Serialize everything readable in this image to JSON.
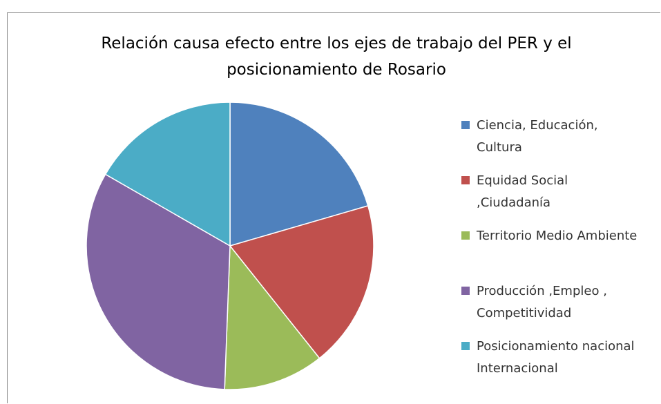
{
  "chart_data": {
    "type": "pie",
    "title": "Relación causa efecto entre los ejes de trabajo del PER y el posicionamiento  de Rosario",
    "categories": [
      "Ciencia, Educación, Cultura",
      "Equidad Social ,Ciudadanía",
      "Territorio Medio Ambiente",
      "Producción ,Empleo , Competitividad",
      "Posicionamiento nacional  Internacional"
    ],
    "values": [
      20.5,
      18.8,
      11.3,
      32.7,
      16.7
    ],
    "colors": [
      "#4f81bd",
      "#c0504d",
      "#9bbb59",
      "#8064a2",
      "#4bacc6"
    ],
    "legend": "right"
  }
}
